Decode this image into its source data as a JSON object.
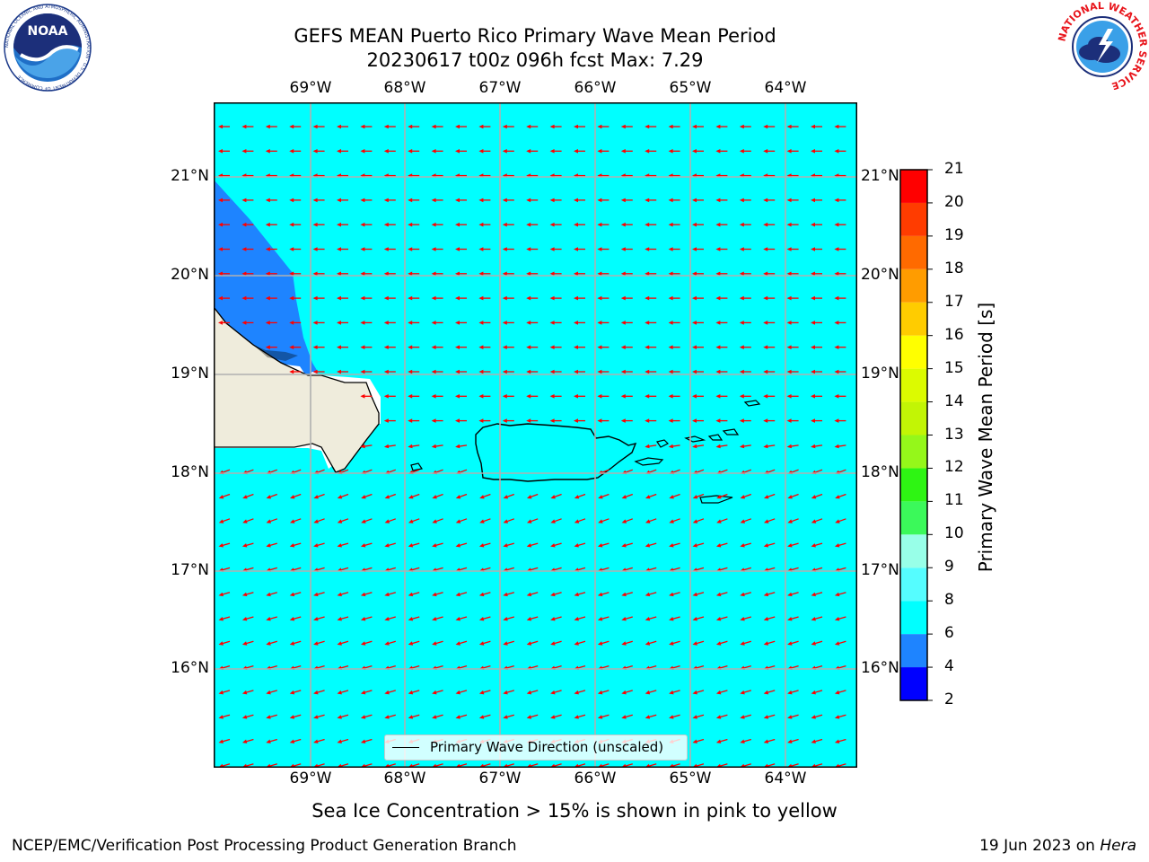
{
  "header": {
    "title_line1": "GEFS MEAN Puerto Rico Primary Wave Mean Period",
    "title_line2": "20230617 t00z 096h fcst   Max: 7.29"
  },
  "logos": {
    "left": {
      "name": "noaa-logo",
      "text": "NOAA",
      "ring_text": "NATIONAL OCEANIC AND ATMOSPHERIC ADMINISTRATION · U.S. DEPARTMENT OF COMMERCE"
    },
    "right": {
      "name": "nws-logo",
      "ring_text": "NATIONAL WEATHER SERVICE"
    }
  },
  "map": {
    "lon_ticks": [
      "69°W",
      "68°W",
      "67°W",
      "66°W",
      "65°W",
      "64°W"
    ],
    "lat_ticks": [
      "21°N",
      "20°N",
      "19°N",
      "18°N",
      "17°N",
      "16°N"
    ],
    "ocean_color": "#00ffff",
    "land_color": "#efecdc",
    "arrow_color": "#ff0000",
    "low_period_color": "#1e84ff"
  },
  "legend": {
    "label": "Primary Wave Direction (unscaled)"
  },
  "colorbar": {
    "title": "Primary Wave Mean Period [s]",
    "levels": [
      2,
      4,
      6,
      8,
      9,
      10,
      11,
      12,
      13,
      14,
      15,
      16,
      17,
      18,
      19,
      20,
      21
    ],
    "colors": [
      "#0000ff",
      "#1e84ff",
      "#00ffff",
      "#55fdff",
      "#98ffe8",
      "#3bf95a",
      "#2ef513",
      "#95f71a",
      "#c2f505",
      "#dcfb00",
      "#ffff00",
      "#ffcc00",
      "#ff9c00",
      "#ff6a00",
      "#ff3c00",
      "#ff0000"
    ]
  },
  "notes": {
    "sea_ice": "Sea Ice Concentration > 15% is shown in pink to yellow"
  },
  "footer": {
    "left": "NCEP/EMC/Verification Post Processing Product Generation Branch",
    "date": "19 Jun 2023 on ",
    "machine": "Hera"
  }
}
